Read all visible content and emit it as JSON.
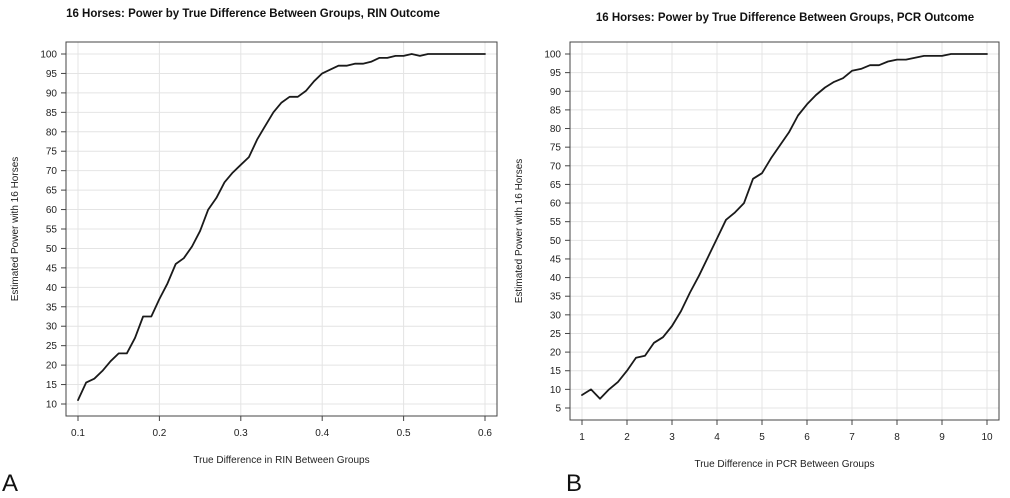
{
  "panels": [
    {
      "letter": "A"
    },
    {
      "letter": "B"
    }
  ],
  "chart_data": [
    {
      "type": "line",
      "title": "16 Horses: Power by True Difference Between Groups, RIN Outcome",
      "xlabel": "True Difference in RIN Between Groups",
      "ylabel": "Estimated Power with 16 Horses",
      "xlim": [
        0.1,
        0.6
      ],
      "ylim": [
        10,
        100
      ],
      "xticks": [
        "0.1",
        "0.2",
        "0.3",
        "0.4",
        "0.5",
        "0.6"
      ],
      "yticks": [
        "10",
        "15",
        "20",
        "25",
        "30",
        "35",
        "40",
        "45",
        "50",
        "55",
        "60",
        "65",
        "70",
        "75",
        "80",
        "85",
        "90",
        "95",
        "100"
      ],
      "grid": true,
      "x": [
        0.1,
        0.11,
        0.12,
        0.13,
        0.14,
        0.15,
        0.16,
        0.17,
        0.18,
        0.19,
        0.2,
        0.21,
        0.22,
        0.23,
        0.24,
        0.25,
        0.26,
        0.27,
        0.28,
        0.29,
        0.3,
        0.31,
        0.32,
        0.33,
        0.34,
        0.35,
        0.36,
        0.37,
        0.38,
        0.39,
        0.4,
        0.41,
        0.42,
        0.43,
        0.44,
        0.45,
        0.46,
        0.47,
        0.48,
        0.49,
        0.5,
        0.51,
        0.52,
        0.53,
        0.54,
        0.55,
        0.56,
        0.57,
        0.58,
        0.59,
        0.6
      ],
      "y": [
        11,
        15.5,
        16.5,
        18.5,
        21,
        23,
        23,
        27,
        32.5,
        32.5,
        37,
        41,
        46,
        47.5,
        50.5,
        54.5,
        60,
        63,
        67,
        69.5,
        71.5,
        73.5,
        78,
        81.5,
        85,
        87.5,
        89,
        89,
        90.5,
        93,
        95,
        96,
        97,
        97,
        97.5,
        97.5,
        98,
        99,
        99,
        99.5,
        99.5,
        100,
        99.5,
        100,
        100,
        100,
        100,
        100,
        100,
        100,
        100
      ]
    },
    {
      "type": "line",
      "title": "16 Horses: Power by True Difference Between Groups, PCR Outcome",
      "xlabel": "True Difference in PCR Between Groups",
      "ylabel": "Estimated Power with 16 Horses",
      "xlim": [
        1,
        10
      ],
      "ylim": [
        5,
        100
      ],
      "xticks": [
        "1",
        "2",
        "3",
        "4",
        "5",
        "6",
        "7",
        "8",
        "9",
        "10"
      ],
      "yticks": [
        "5",
        "10",
        "15",
        "20",
        "25",
        "30",
        "35",
        "40",
        "45",
        "50",
        "55",
        "60",
        "65",
        "70",
        "75",
        "80",
        "85",
        "90",
        "95",
        "100"
      ],
      "grid": true,
      "x": [
        1.0,
        1.2,
        1.4,
        1.6,
        1.8,
        2.0,
        2.2,
        2.4,
        2.6,
        2.8,
        3.0,
        3.2,
        3.4,
        3.6,
        3.8,
        4.0,
        4.2,
        4.4,
        4.6,
        4.8,
        5.0,
        5.2,
        5.4,
        5.6,
        5.8,
        6.0,
        6.2,
        6.4,
        6.6,
        6.8,
        7.0,
        7.2,
        7.4,
        7.6,
        7.8,
        8.0,
        8.2,
        8.4,
        8.6,
        8.8,
        9.0,
        9.2,
        9.4,
        9.6,
        9.8,
        10.0
      ],
      "y": [
        8.5,
        10,
        7.5,
        10,
        12,
        15,
        18.5,
        19,
        22.5,
        24,
        27,
        31,
        36,
        40.5,
        45.5,
        50.5,
        55.5,
        57.5,
        60,
        66.5,
        68,
        72,
        75.5,
        79,
        83.5,
        86.5,
        89,
        91,
        92.5,
        93.5,
        95.5,
        96,
        97,
        97,
        98,
        98.5,
        98.5,
        99,
        99.5,
        99.5,
        99.5,
        100,
        100,
        100,
        100,
        100
      ]
    }
  ]
}
